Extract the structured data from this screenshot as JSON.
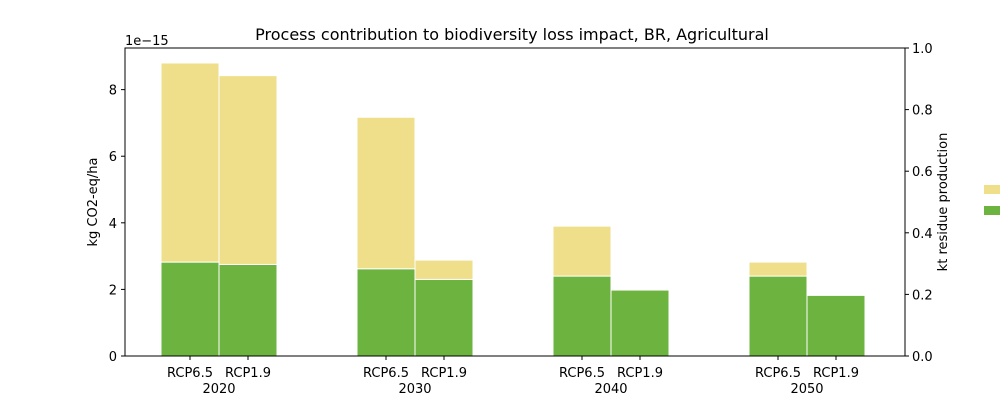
{
  "chart_data": {
    "type": "bar",
    "title": "Process contribution to biodiversity loss impact, BR, Agricultural",
    "ylabel": "kg CO2-eq/ha",
    "y_offset_label": "1e−15",
    "y_scale": 1e-15,
    "ylim": [
      0,
      9.25
    ],
    "yticks": [
      0,
      2,
      4,
      6,
      8
    ],
    "right_ylabel": "kt residue production",
    "right_ylim": [
      0,
      1.0
    ],
    "right_yticks": [
      "0.0",
      "0.2",
      "0.4",
      "0.6",
      "0.8",
      "1.0"
    ],
    "stacked": true,
    "groups": [
      "2020",
      "2030",
      "2040",
      "2050"
    ],
    "scenarios": [
      "RCP6.5",
      "RCP1.9"
    ],
    "series": [
      {
        "color": "#6db33f",
        "values": [
          [
            2.82,
            2.75
          ],
          [
            2.62,
            2.3
          ],
          [
            2.4,
            1.98
          ],
          [
            2.4,
            1.82
          ]
        ]
      },
      {
        "color": "#efdf8a",
        "values": [
          [
            5.98,
            5.67
          ],
          [
            4.55,
            0.58
          ],
          [
            1.5,
            0.0
          ],
          [
            0.42,
            0.0
          ]
        ]
      }
    ],
    "grid": false,
    "legend_position": "right"
  }
}
